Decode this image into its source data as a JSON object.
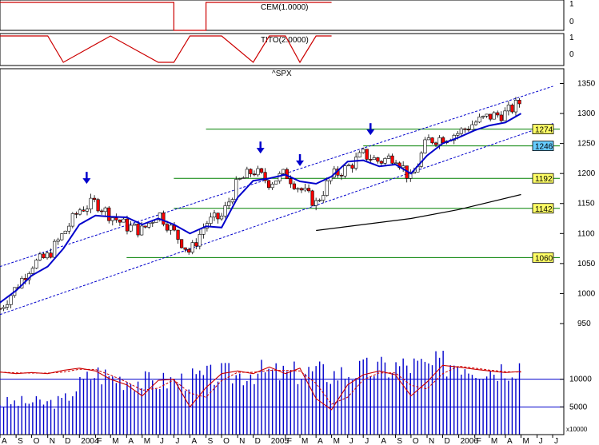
{
  "indicators": {
    "cem_label": "CEM(1.0000)",
    "tito_label": "TITO(2.0000)",
    "cem_ticks": [
      "1",
      "0"
    ],
    "tito_ticks": [
      "1",
      "0"
    ]
  },
  "main": {
    "symbol": "^SPX",
    "volume_unit": "x10000"
  },
  "chart_data": [
    {
      "type": "line",
      "panel": "CEM indicator",
      "title": "CEM(1.0000)",
      "ylim": [
        0,
        1
      ],
      "ticks": [
        1,
        0
      ],
      "series": [
        {
          "name": "CEM",
          "color": "#cc0000",
          "x": [
            "2003-08",
            "2004-07",
            "2004-07",
            "2004-09",
            "2004-09",
            "2005-05"
          ],
          "values": [
            1,
            1,
            0,
            0,
            1,
            1
          ]
        }
      ]
    },
    {
      "type": "line",
      "panel": "TITO indicator",
      "title": "TITO(2.0000)",
      "ylim": [
        0,
        1
      ],
      "ticks": [
        1,
        0
      ],
      "series": [
        {
          "name": "TITO",
          "color": "#cc0000",
          "x": [
            "2003-08",
            "2003-11",
            "2003-12",
            "2004-03",
            "2004-06",
            "2004-07",
            "2004-08",
            "2004-09",
            "2004-10",
            "2004-12",
            "2005-01",
            "2005-02",
            "2005-03",
            "2005-04",
            "2005-05"
          ],
          "values": [
            1,
            1,
            0,
            1,
            0,
            0,
            1,
            1,
            1,
            0,
            1,
            1,
            0,
            1,
            1
          ]
        }
      ]
    },
    {
      "type": "candlestick",
      "panel": "price",
      "title": "^SPX",
      "ylim": [
        930,
        1360
      ],
      "yticks": [
        950,
        1000,
        1050,
        1100,
        1150,
        1200,
        1250,
        1300,
        1350
      ],
      "moving_average_color": "#0000cc",
      "moving_average": [
        {
          "x": "2003-08-01",
          "y": 985
        },
        {
          "x": "2003-09-01",
          "y": 1005
        },
        {
          "x": "2003-10-01",
          "y": 1030
        },
        {
          "x": "2003-11-01",
          "y": 1045
        },
        {
          "x": "2003-12-01",
          "y": 1075
        },
        {
          "x": "2004-01-01",
          "y": 1115
        },
        {
          "x": "2004-02-01",
          "y": 1130
        },
        {
          "x": "2004-03-01",
          "y": 1128
        },
        {
          "x": "2004-04-01",
          "y": 1127
        },
        {
          "x": "2004-05-01",
          "y": 1115
        },
        {
          "x": "2004-06-01",
          "y": 1125
        },
        {
          "x": "2004-07-01",
          "y": 1115
        },
        {
          "x": "2004-08-01",
          "y": 1100
        },
        {
          "x": "2004-09-01",
          "y": 1112
        },
        {
          "x": "2004-10-01",
          "y": 1110
        },
        {
          "x": "2004-11-01",
          "y": 1160
        },
        {
          "x": "2004-12-01",
          "y": 1188
        },
        {
          "x": "2005-01-01",
          "y": 1192
        },
        {
          "x": "2005-02-01",
          "y": 1198
        },
        {
          "x": "2005-03-01",
          "y": 1187
        },
        {
          "x": "2005-04-01",
          "y": 1183
        },
        {
          "x": "2005-05-01",
          "y": 1195
        },
        {
          "x": "2005-06-01",
          "y": 1220
        },
        {
          "x": "2005-07-01",
          "y": 1222
        },
        {
          "x": "2005-08-01",
          "y": 1212
        },
        {
          "x": "2005-09-01",
          "y": 1215
        },
        {
          "x": "2005-10-01",
          "y": 1200
        },
        {
          "x": "2005-11-01",
          "y": 1230
        },
        {
          "x": "2005-12-01",
          "y": 1250
        },
        {
          "x": "2006-01-01",
          "y": 1260
        },
        {
          "x": "2006-02-01",
          "y": 1272
        },
        {
          "x": "2006-03-01",
          "y": 1280
        },
        {
          "x": "2006-04-01",
          "y": 1285
        },
        {
          "x": "2006-05-01",
          "y": 1300
        }
      ],
      "long_term_average_color": "#000000",
      "long_term_average": [
        {
          "x": "2005-04-01",
          "y": 1105
        },
        {
          "x": "2005-10-01",
          "y": 1125
        },
        {
          "x": "2006-01-01",
          "y": 1140
        },
        {
          "x": "2006-05-01",
          "y": 1165
        }
      ],
      "closes": [
        {
          "x": "2003-08-01",
          "y": 975
        },
        {
          "x": "2003-09-01",
          "y": 1010
        },
        {
          "x": "2003-10-01",
          "y": 1048
        },
        {
          "x": "2003-11-01",
          "y": 1062
        },
        {
          "x": "2003-12-01",
          "y": 1100
        },
        {
          "x": "2004-01-01",
          "y": 1140
        },
        {
          "x": "2004-02-01",
          "y": 1152
        },
        {
          "x": "2004-03-01",
          "y": 1130
        },
        {
          "x": "2004-04-01",
          "y": 1112
        },
        {
          "x": "2004-05-01",
          "y": 1105
        },
        {
          "x": "2004-06-01",
          "y": 1135
        },
        {
          "x": "2004-07-01",
          "y": 1102
        },
        {
          "x": "2004-08-01",
          "y": 1068
        },
        {
          "x": "2004-09-01",
          "y": 1118
        },
        {
          "x": "2004-10-01",
          "y": 1128
        },
        {
          "x": "2004-11-01",
          "y": 1185
        },
        {
          "x": "2004-12-01",
          "y": 1205
        },
        {
          "x": "2005-01-01",
          "y": 1185
        },
        {
          "x": "2005-02-01",
          "y": 1200
        },
        {
          "x": "2005-03-01",
          "y": 1175
        },
        {
          "x": "2005-04-01",
          "y": 1150
        },
        {
          "x": "2005-05-01",
          "y": 1195
        },
        {
          "x": "2005-06-01",
          "y": 1210
        },
        {
          "x": "2005-07-01",
          "y": 1232
        },
        {
          "x": "2005-08-01",
          "y": 1220
        },
        {
          "x": "2005-09-01",
          "y": 1230
        },
        {
          "x": "2005-10-01",
          "y": 1188
        },
        {
          "x": "2005-11-01",
          "y": 1255
        },
        {
          "x": "2005-12-01",
          "y": 1260
        },
        {
          "x": "2006-01-01",
          "y": 1268
        },
        {
          "x": "2006-02-01",
          "y": 1285
        },
        {
          "x": "2006-03-01",
          "y": 1295
        },
        {
          "x": "2006-04-01",
          "y": 1300
        },
        {
          "x": "2006-05-01",
          "y": 1320
        }
      ],
      "horizontal_levels": [
        {
          "value": 1274,
          "label": "1274",
          "label_bg": "#ffff66",
          "from": "2004-09-01"
        },
        {
          "value": 1246,
          "label": "1246",
          "label_bg": "#66ccff",
          "from": "2005-07-01"
        },
        {
          "value": 1192,
          "label": "1192",
          "label_bg": "#ffff66",
          "from": "2004-07-01"
        },
        {
          "value": 1142,
          "label": "1142",
          "label_bg": "#ffff66",
          "from": "2004-07-01"
        },
        {
          "value": 1060,
          "label": "1060",
          "label_bg": "#ffff66",
          "from": "2004-04-01"
        }
      ],
      "level_line_color": "#008000",
      "trend_channel": [
        {
          "x1": "2003-08-01",
          "y1": 1045,
          "x2": "2006-05-01",
          "y2": 1328
        },
        {
          "x1": "2003-08-01",
          "y1": 965,
          "x2": "2006-05-01",
          "y2": 1265
        }
      ],
      "signal_arrows": [
        "2004-01-15",
        "2004-12-15",
        "2005-03-01",
        "2005-07-15"
      ]
    },
    {
      "type": "bar",
      "panel": "volume",
      "unit": "x10000",
      "yticks": [
        5000,
        10000
      ],
      "ylim": [
        0,
        15000
      ],
      "bar_color": "#0000cc",
      "volume": [
        {
          "x": "2003-08-01",
          "y": 6000
        },
        {
          "x": "2003-09-01",
          "y": 6100
        },
        {
          "x": "2003-10-01",
          "y": 6200
        },
        {
          "x": "2003-11-01",
          "y": 6000
        },
        {
          "x": "2003-12-01",
          "y": 6400
        },
        {
          "x": "2004-01-01",
          "y": 9500
        },
        {
          "x": "2004-02-01",
          "y": 11800
        },
        {
          "x": "2004-03-01",
          "y": 11000
        },
        {
          "x": "2004-04-01",
          "y": 10500
        },
        {
          "x": "2004-05-01",
          "y": 10200
        },
        {
          "x": "2004-06-01",
          "y": 10000
        },
        {
          "x": "2004-07-01",
          "y": 10300
        },
        {
          "x": "2004-08-01",
          "y": 10500
        },
        {
          "x": "2004-09-01",
          "y": 11000
        },
        {
          "x": "2004-10-01",
          "y": 11500
        },
        {
          "x": "2004-11-01",
          "y": 11300
        },
        {
          "x": "2004-12-01",
          "y": 12000
        },
        {
          "x": "2005-01-01",
          "y": 11800
        },
        {
          "x": "2005-02-01",
          "y": 11500
        },
        {
          "x": "2005-03-01",
          "y": 11800
        },
        {
          "x": "2005-04-01",
          "y": 12000
        },
        {
          "x": "2005-05-01",
          "y": 11500
        },
        {
          "x": "2005-06-01",
          "y": 11800
        },
        {
          "x": "2005-07-01",
          "y": 12300
        },
        {
          "x": "2005-08-01",
          "y": 12500
        },
        {
          "x": "2005-09-01",
          "y": 13000
        },
        {
          "x": "2005-10-01",
          "y": 13200
        },
        {
          "x": "2005-11-01",
          "y": 12800
        },
        {
          "x": "2005-12-01",
          "y": 13500
        },
        {
          "x": "2006-01-01",
          "y": 14000
        },
        {
          "x": "2006-02-01",
          "y": 13000
        },
        {
          "x": "2006-03-01",
          "y": 12500
        },
        {
          "x": "2006-04-01",
          "y": 12800
        },
        {
          "x": "2006-05-01",
          "y": 13500
        }
      ],
      "oscillator_color": "#cc0000",
      "oscillator": [
        {
          "x": "2003-08-01",
          "y": 11300
        },
        {
          "x": "2003-09-01",
          "y": 11000
        },
        {
          "x": "2003-10-01",
          "y": 11200
        },
        {
          "x": "2003-11-01",
          "y": 11000
        },
        {
          "x": "2003-12-01",
          "y": 11600
        },
        {
          "x": "2004-01-01",
          "y": 12000
        },
        {
          "x": "2004-02-01",
          "y": 11500
        },
        {
          "x": "2004-03-01",
          "y": 10000
        },
        {
          "x": "2004-04-01",
          "y": 9000
        },
        {
          "x": "2004-05-01",
          "y": 7000
        },
        {
          "x": "2004-06-01",
          "y": 9800
        },
        {
          "x": "2004-07-01",
          "y": 10000
        },
        {
          "x": "2004-08-01",
          "y": 5000
        },
        {
          "x": "2004-09-01",
          "y": 8500
        },
        {
          "x": "2004-10-01",
          "y": 11000
        },
        {
          "x": "2004-11-01",
          "y": 11500
        },
        {
          "x": "2004-12-01",
          "y": 11000
        },
        {
          "x": "2005-01-01",
          "y": 12200
        },
        {
          "x": "2005-02-01",
          "y": 11000
        },
        {
          "x": "2005-03-01",
          "y": 12000
        },
        {
          "x": "2005-04-01",
          "y": 6500
        },
        {
          "x": "2005-05-01",
          "y": 4500
        },
        {
          "x": "2005-06-01",
          "y": 9000
        },
        {
          "x": "2005-07-01",
          "y": 10800
        },
        {
          "x": "2005-08-01",
          "y": 11500
        },
        {
          "x": "2005-09-01",
          "y": 10800
        },
        {
          "x": "2005-10-01",
          "y": 7000
        },
        {
          "x": "2005-11-01",
          "y": 9500
        },
        {
          "x": "2005-12-01",
          "y": 12500
        },
        {
          "x": "2006-01-01",
          "y": 12200
        },
        {
          "x": "2006-02-01",
          "y": 11800
        },
        {
          "x": "2006-03-01",
          "y": 11500
        },
        {
          "x": "2006-04-01",
          "y": 11200
        },
        {
          "x": "2006-05-01",
          "y": 11400
        }
      ],
      "reference_lines": [
        10000,
        5000
      ]
    }
  ],
  "x_axis": {
    "month_labels": [
      "A",
      "S",
      "O",
      "N",
      "D",
      "2004",
      "F",
      "M",
      "A",
      "M",
      "J",
      "J",
      "A",
      "S",
      "O",
      "N",
      "D",
      "2005",
      "F",
      "M",
      "A",
      "M",
      "J",
      "J",
      "A",
      "S",
      "O",
      "N",
      "D",
      "2006",
      "F",
      "M",
      "A",
      "M",
      "J",
      "J"
    ]
  }
}
